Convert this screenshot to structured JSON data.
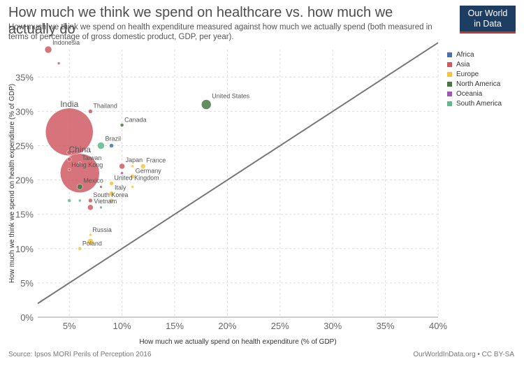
{
  "title": "How much we think we spend on healthcare vs. how much we actually do",
  "subtitle": "How much we think we spend on health expenditure measured against how much we actually spend (both measured in terms of percentage of gross domestic product, GDP, per year).",
  "logo": {
    "line1": "Our World",
    "line2": "in Data"
  },
  "source": "Source: Ipsos MORI Perils of Perception 2016",
  "credit": "OurWorldInData.org • CC BY-SA",
  "legend": [
    {
      "name": "Africa",
      "color": "#4c6fb0"
    },
    {
      "name": "Asia",
      "color": "#d05a63"
    },
    {
      "name": "Europe",
      "color": "#f5c542"
    },
    {
      "name": "North America",
      "color": "#457a3f"
    },
    {
      "name": "Oceania",
      "color": "#a057b5"
    },
    {
      "name": "South America",
      "color": "#5fb98d"
    }
  ],
  "chart_data": {
    "type": "scatter",
    "xlabel": "How much we actually spend on health expenditure (% of GDP)",
    "ylabel": "How much we think we spend on health expenditure (% of GDP)",
    "xlim": [
      2,
      40
    ],
    "ylim": [
      0,
      39
    ],
    "xticks": [
      5,
      10,
      15,
      20,
      25,
      30,
      35,
      40
    ],
    "yticks": [
      0,
      5,
      10,
      15,
      20,
      25,
      30,
      35
    ],
    "xtick_labels": [
      "5%",
      "10%",
      "15%",
      "20%",
      "25%",
      "30%",
      "35%",
      "40%"
    ],
    "ytick_labels": [
      "0%",
      "5%",
      "10%",
      "15%",
      "20%",
      "25%",
      "30%",
      "35%"
    ],
    "reference_line": {
      "from": [
        2,
        2
      ],
      "to": [
        40,
        40
      ],
      "color": "#777777"
    },
    "grid": true,
    "points": [
      {
        "label": "Indonesia",
        "x": 3,
        "y": 39,
        "size": 5,
        "region": "Asia",
        "big_label": false
      },
      {
        "label": "",
        "x": 4,
        "y": 37,
        "size": 2,
        "region": "Asia",
        "big_label": false
      },
      {
        "label": "Thailand",
        "x": 7,
        "y": 30,
        "size": 3,
        "region": "Asia",
        "big_label": false
      },
      {
        "label": "India",
        "x": 5,
        "y": 27,
        "size": 34,
        "region": "Asia",
        "big_label": true
      },
      {
        "label": "Canada",
        "x": 10,
        "y": 28,
        "size": 2.5,
        "region": "North America",
        "big_label": false
      },
      {
        "label": "United States",
        "x": 18,
        "y": 31,
        "size": 7,
        "region": "North America",
        "big_label": false
      },
      {
        "label": "Brazil",
        "x": 8,
        "y": 25,
        "size": 5,
        "region": "South America",
        "big_label": false
      },
      {
        "label": "",
        "x": 9,
        "y": 25,
        "size": 3,
        "region": "Africa",
        "big_label": false
      },
      {
        "label": "",
        "x": 5,
        "y": 24,
        "size": 3.5,
        "region": "Asia",
        "big_label": false
      },
      {
        "label": "China",
        "x": 6,
        "y": 21,
        "size": 28,
        "region": "Asia",
        "big_label": true
      },
      {
        "label": "Taiwan",
        "x": 6,
        "y": 22.5,
        "size": 2,
        "region": "Asia",
        "big_label": false
      },
      {
        "label": "",
        "x": 5,
        "y": 23,
        "size": 3,
        "region": "Asia",
        "big_label": false
      },
      {
        "label": "Hong Kong",
        "x": 5,
        "y": 21.5,
        "size": 2,
        "region": "Asia",
        "big_label": false
      },
      {
        "label": "Japan",
        "x": 10,
        "y": 22,
        "size": 4,
        "region": "Asia",
        "big_label": false
      },
      {
        "label": "France",
        "x": 12,
        "y": 22,
        "size": 3.5,
        "region": "Europe",
        "big_label": false
      },
      {
        "label": "",
        "x": 11,
        "y": 22,
        "size": 2,
        "region": "Europe",
        "big_label": false
      },
      {
        "label": "",
        "x": 10,
        "y": 21,
        "size": 2,
        "region": "Oceania",
        "big_label": false
      },
      {
        "label": "Germany",
        "x": 11,
        "y": 20.5,
        "size": 3,
        "region": "Europe",
        "big_label": false
      },
      {
        "label": "United Kingdom",
        "x": 9,
        "y": 19.5,
        "size": 3,
        "region": "Europe",
        "big_label": false
      },
      {
        "label": "",
        "x": 11,
        "y": 19,
        "size": 2,
        "region": "Europe",
        "big_label": false
      },
      {
        "label": "Mexico",
        "x": 6,
        "y": 19,
        "size": 4,
        "region": "North America",
        "big_label": false
      },
      {
        "label": "",
        "x": 8,
        "y": 19,
        "size": 2,
        "region": "Asia",
        "big_label": false
      },
      {
        "label": "Italy",
        "x": 9,
        "y": 18,
        "size": 3.5,
        "region": "Europe",
        "big_label": false
      },
      {
        "label": "South Korea",
        "x": 7,
        "y": 17,
        "size": 3,
        "region": "Asia",
        "big_label": false
      },
      {
        "label": "",
        "x": 9,
        "y": 17,
        "size": 3,
        "region": "Europe",
        "big_label": false
      },
      {
        "label": "",
        "x": 5,
        "y": 17,
        "size": 2.5,
        "region": "South America",
        "big_label": false
      },
      {
        "label": "",
        "x": 6,
        "y": 17,
        "size": 2,
        "region": "South America",
        "big_label": false
      },
      {
        "label": "Vietnam",
        "x": 7,
        "y": 16,
        "size": 4,
        "region": "Asia",
        "big_label": false
      },
      {
        "label": "",
        "x": 8,
        "y": 16,
        "size": 2,
        "region": "South America",
        "big_label": false
      },
      {
        "label": "Russia",
        "x": 7,
        "y": 12,
        "size": 2,
        "region": "Europe",
        "big_label": false
      },
      {
        "label": "",
        "x": 7,
        "y": 11,
        "size": 4.5,
        "region": "Europe",
        "big_label": false
      },
      {
        "label": "Poland",
        "x": 6,
        "y": 10,
        "size": 2.5,
        "region": "Europe",
        "big_label": false
      }
    ]
  }
}
